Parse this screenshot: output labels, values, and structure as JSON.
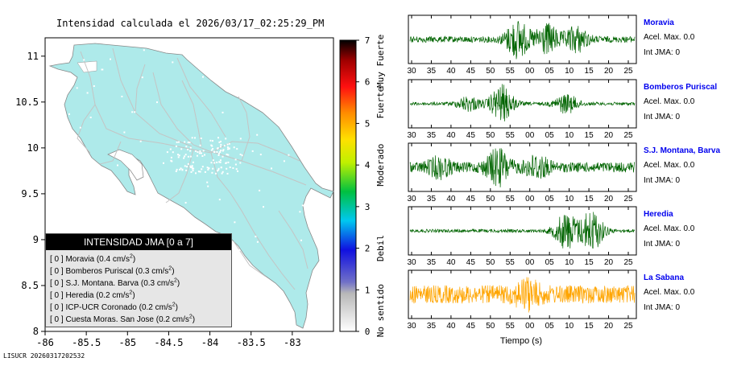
{
  "page": {
    "title": "Intensidad calculada el 2026/03/17_02:25:29_PM",
    "footer": "LISUCR 20260317202532",
    "x_axis_label": "Tiempo (s)"
  },
  "legend": {
    "title": "INTENSIDAD JMA [0 a 7]",
    "unit": "cm/s",
    "unit_power": "2",
    "items": [
      {
        "int": "[ 0 ]",
        "name": "Moravia",
        "acc": "0.4"
      },
      {
        "int": "[ 0 ]",
        "name": "Bomberos Puriscal",
        "acc": "0.3"
      },
      {
        "int": "[ 0 ]",
        "name": "S.J. Montana. Barva",
        "acc": "0.3"
      },
      {
        "int": "[ 0 ]",
        "name": "Heredia",
        "acc": "0.2"
      },
      {
        "int": "[ 0 ]",
        "name": "ICP-UCR Coronado",
        "acc": "0.2"
      },
      {
        "int": "[ 0 ]",
        "name": "Cuesta Moras. San Jose",
        "acc": "0.2"
      }
    ]
  },
  "stations": [
    {
      "name": "Moravia",
      "acel": "Acel. Max. 0.0",
      "int": "Int JMA: 0",
      "color": "#006400"
    },
    {
      "name": "Bomberos Puriscal",
      "acel": "Acel. Max. 0.0",
      "int": "Int JMA: 0",
      "color": "#006400"
    },
    {
      "name": "S.J. Montana, Barva",
      "acel": "Acel. Max. 0.0",
      "int": "Int JMA: 0",
      "color": "#006400"
    },
    {
      "name": "Heredia",
      "acel": "Acel. Max. 0.0",
      "int": "Int JMA: 0",
      "color": "#006400"
    },
    {
      "name": "La Sabana",
      "acel": "Acel. Max. 0.0",
      "int": "Int JMA: 0",
      "color": "#ffa500"
    }
  ],
  "chart_data": [
    {
      "type": "map",
      "title": "Intensidad calculada el 2026/03/17_02:25:29_PM",
      "x_ticks": [
        "-86",
        "-85.5",
        "-85",
        "-84.5",
        "-84",
        "-83.5",
        "-83"
      ],
      "y_ticks": [
        "8",
        "8.5",
        "9",
        "9.5",
        "10",
        "10.5",
        "11"
      ],
      "xlim": [
        -86,
        -82.5
      ],
      "ylim": [
        8,
        11.2
      ],
      "land_color": "#aeeaea"
    },
    {
      "type": "heatmap",
      "role": "colorbar",
      "ticks": [
        "0",
        "1",
        "2",
        "3",
        "4",
        "5",
        "6",
        "7"
      ],
      "range": [
        0,
        7
      ],
      "labels": [
        {
          "text": "No sentido",
          "at": 0.5
        },
        {
          "text": "Debil",
          "at": 2
        },
        {
          "text": "Moderado",
          "at": 4
        },
        {
          "text": "Fuerte",
          "at": 5.5
        },
        {
          "text": "Muy Fuerte",
          "at": 6.5
        }
      ]
    },
    {
      "type": "line",
      "role": "waveforms",
      "x_tick_labels": [
        "30",
        "35",
        "40",
        "45",
        "50",
        "55",
        "00",
        "05",
        "10",
        "15",
        "20",
        "25"
      ],
      "xlabel": "Tiempo (s)",
      "series": [
        {
          "name": "Moravia",
          "bursts": [
            [
              5.5,
              0.9
            ],
            [
              7.0,
              0.7
            ],
            [
              8.5,
              0.6
            ]
          ],
          "base": 0.15
        },
        {
          "name": "Bomberos Puriscal",
          "bursts": [
            [
              4.7,
              0.9
            ],
            [
              3.0,
              0.35
            ],
            [
              8.0,
              0.45
            ]
          ],
          "base": 0.08
        },
        {
          "name": "S.J. Montana, Barva",
          "bursts": [
            [
              4.5,
              0.8
            ],
            [
              6.5,
              0.5
            ],
            [
              1.5,
              0.4
            ]
          ],
          "base": 0.25
        },
        {
          "name": "Heredia",
          "bursts": [
            [
              8.0,
              0.9
            ],
            [
              9.3,
              1.0
            ]
          ],
          "base": 0.08
        },
        {
          "name": "La Sabana",
          "bursts": [
            [
              6.0,
              0.5
            ]
          ],
          "base": 0.45
        }
      ]
    }
  ]
}
